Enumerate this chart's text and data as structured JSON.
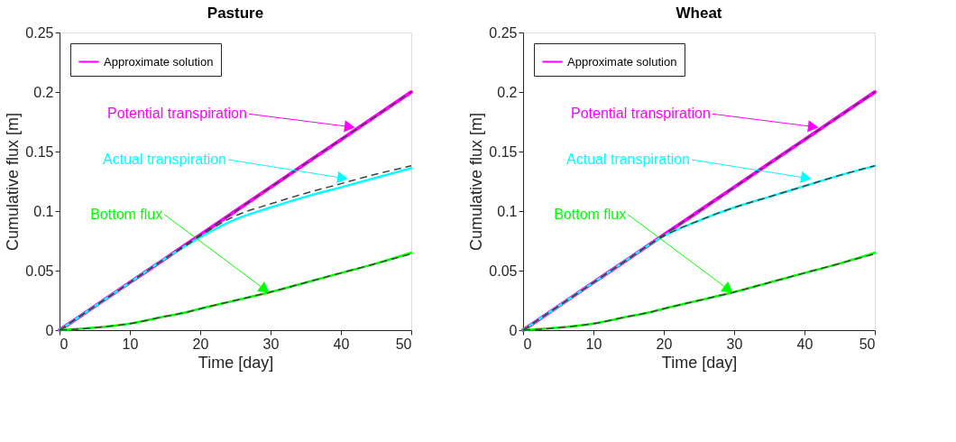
{
  "chart_data": [
    {
      "type": "line",
      "title": "Pasture",
      "xlabel": "Time [day]",
      "ylabel": "Cumulative flux [m]",
      "xlim": [
        0,
        50
      ],
      "ylim": [
        0,
        0.25
      ],
      "xticks": [
        0,
        10,
        20,
        30,
        40,
        50
      ],
      "yticks": [
        0,
        0.05,
        0.1,
        0.15,
        0.2,
        0.25
      ],
      "grid": false,
      "legend": "top left",
      "x": [
        0,
        5,
        10,
        15,
        18,
        20,
        25,
        30,
        35,
        40,
        45,
        50
      ],
      "series": [
        {
          "name": "Approximate solution",
          "color": "#ff00ff",
          "line_style": "solid",
          "values": [
            0,
            0.02,
            0.04,
            0.06,
            0.072,
            0.08,
            0.1,
            0.12,
            0.14,
            0.16,
            0.18,
            0.2
          ]
        },
        {
          "color": "#00ffff",
          "line_style": "solid",
          "values": [
            0,
            0.02,
            0.04,
            0.06,
            0.071,
            0.078,
            0.093,
            0.103,
            0.112,
            0.12,
            0.128,
            0.136
          ]
        },
        {
          "color": "#00ff00",
          "line_style": "solid",
          "values": [
            0,
            0.002,
            0.0055,
            0.0115,
            0.015,
            0.018,
            0.025,
            0.032,
            0.04,
            0.048,
            0.056,
            0.065
          ]
        },
        {
          "color": "#404040",
          "line_style": "dashed",
          "values": [
            0,
            0.02,
            0.04,
            0.06,
            0.072,
            0.08,
            0.1,
            0.12,
            0.14,
            0.16,
            0.18,
            0.2
          ]
        },
        {
          "color": "#404040",
          "line_style": "dashed",
          "values": [
            0,
            0.02,
            0.04,
            0.06,
            0.071,
            0.079,
            0.096,
            0.106,
            0.115,
            0.123,
            0.131,
            0.138
          ]
        },
        {
          "color": "#404040",
          "line_style": "dashed",
          "values": [
            0,
            0.002,
            0.0055,
            0.0115,
            0.015,
            0.018,
            0.025,
            0.032,
            0.04,
            0.048,
            0.056,
            0.064
          ]
        }
      ],
      "annotations": [
        {
          "text": "Potential transpiration",
          "x": 41,
          "y": 0.171
        },
        {
          "text": "Actual transpiration",
          "x": 40,
          "y": 0.128
        },
        {
          "text": "Bottom flux",
          "x": 29,
          "y": 0.035
        }
      ]
    },
    {
      "type": "line",
      "title": "Wheat",
      "xlabel": "Time [day]",
      "ylabel": "Cumulative flux [m]",
      "xlim": [
        0,
        50
      ],
      "ylim": [
        0,
        0.25
      ],
      "xticks": [
        0,
        10,
        20,
        30,
        40,
        50
      ],
      "yticks": [
        0,
        0.05,
        0.1,
        0.15,
        0.2,
        0.25
      ],
      "grid": false,
      "legend": "top left",
      "x": [
        0,
        5,
        10,
        15,
        18,
        20,
        25,
        30,
        35,
        40,
        45,
        50
      ],
      "series": [
        {
          "name": "Approximate solution",
          "color": "#ff00ff",
          "line_style": "solid",
          "values": [
            0,
            0.02,
            0.04,
            0.06,
            0.072,
            0.08,
            0.1,
            0.12,
            0.14,
            0.16,
            0.18,
            0.2
          ]
        },
        {
          "color": "#00ffff",
          "line_style": "solid",
          "values": [
            0,
            0.02,
            0.04,
            0.06,
            0.072,
            0.079,
            0.092,
            0.103,
            0.112,
            0.121,
            0.13,
            0.138
          ]
        },
        {
          "color": "#00ff00",
          "line_style": "solid",
          "values": [
            0,
            0.002,
            0.0055,
            0.0115,
            0.015,
            0.018,
            0.025,
            0.032,
            0.04,
            0.048,
            0.056,
            0.065
          ]
        },
        {
          "color": "#404040",
          "line_style": "dashed",
          "values": [
            0,
            0.02,
            0.04,
            0.06,
            0.072,
            0.08,
            0.1,
            0.12,
            0.14,
            0.16,
            0.18,
            0.2
          ]
        },
        {
          "color": "#404040",
          "line_style": "dashed",
          "values": [
            0,
            0.02,
            0.04,
            0.06,
            0.072,
            0.079,
            0.092,
            0.103,
            0.112,
            0.121,
            0.13,
            0.138
          ]
        },
        {
          "color": "#404040",
          "line_style": "dashed",
          "values": [
            0,
            0.002,
            0.0055,
            0.0115,
            0.015,
            0.018,
            0.025,
            0.032,
            0.04,
            0.048,
            0.056,
            0.064
          ]
        }
      ],
      "annotations": [
        {
          "text": "Potential transpiration",
          "x": 41,
          "y": 0.171
        },
        {
          "text": "Actual transpiration",
          "x": 40,
          "y": 0.128
        },
        {
          "text": "Bottom flux",
          "x": 29,
          "y": 0.035
        }
      ]
    }
  ]
}
